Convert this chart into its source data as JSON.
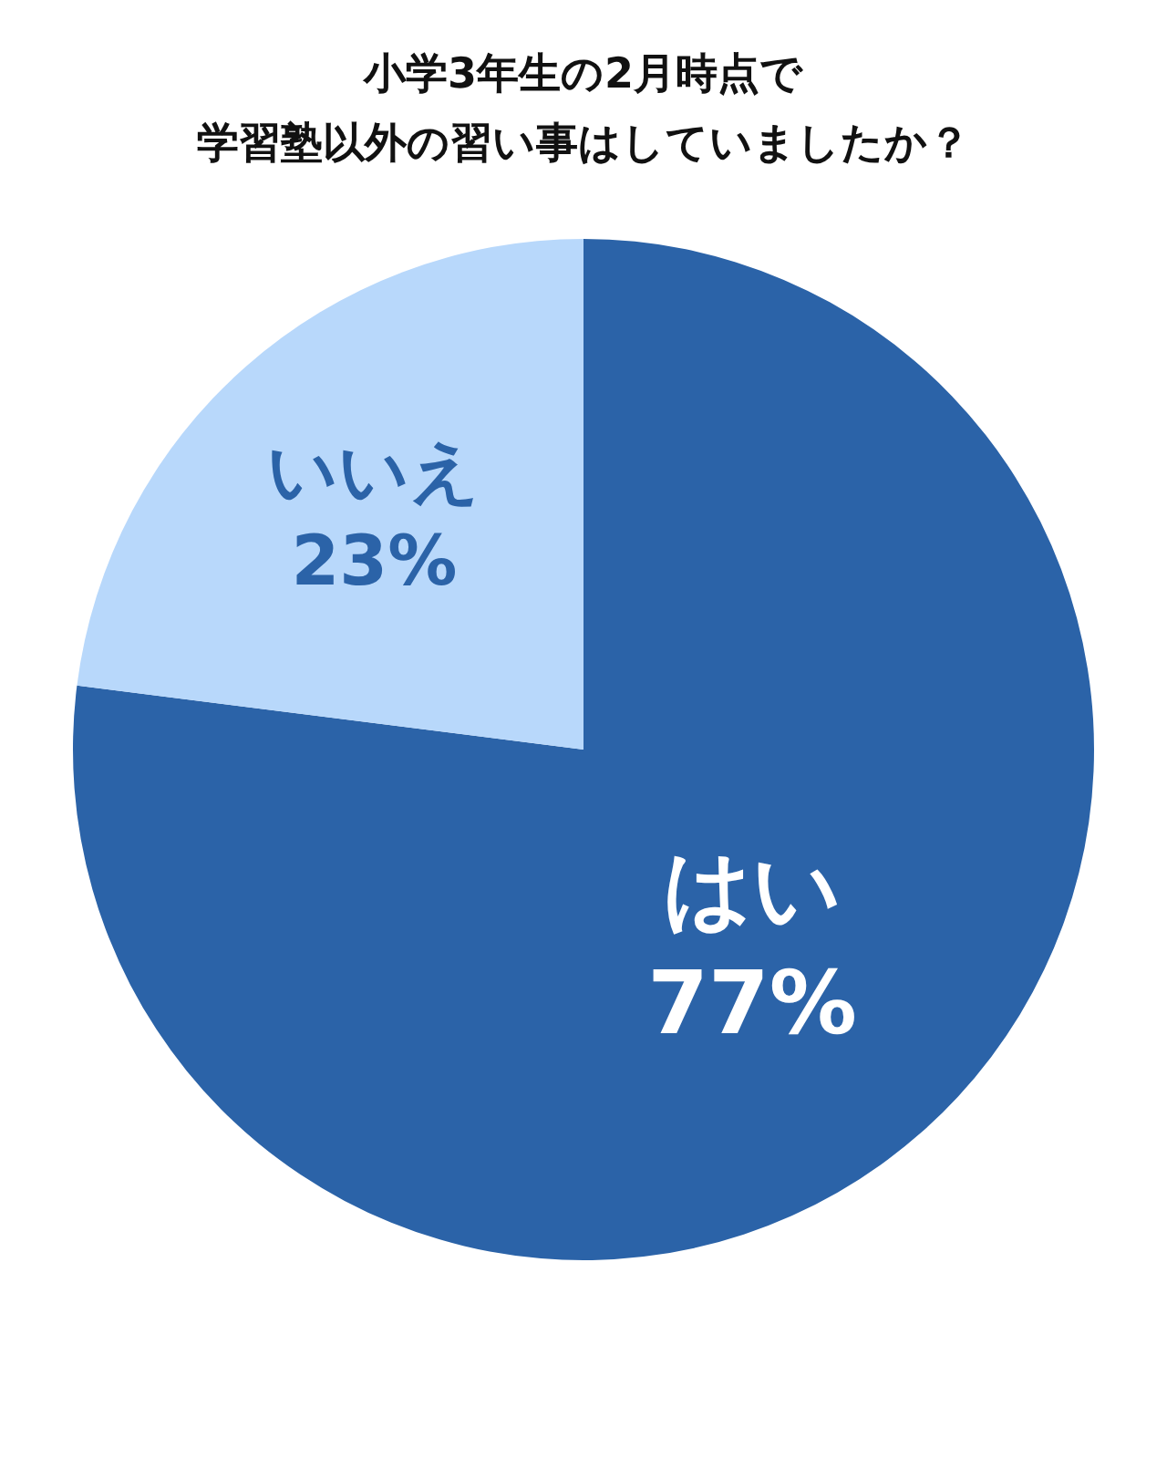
{
  "chart_data": {
    "type": "pie",
    "title": "小学3年生の2月時点で",
    "subtitle": "学習塾以外の習い事はしていましたか？",
    "categories": [
      "はい",
      "いいえ"
    ],
    "values": [
      77,
      23
    ],
    "value_labels": [
      "77%",
      "23%"
    ],
    "colors": [
      "#2b63a8",
      "#b8d8fb"
    ]
  }
}
